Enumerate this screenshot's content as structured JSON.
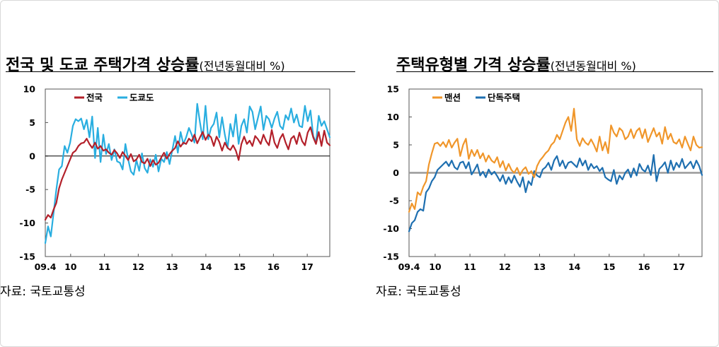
{
  "chart_data": [
    {
      "type": "line",
      "title": "전국 및 도쿄 주택가격 상승률",
      "title_unit": "(전년동월대비 %)",
      "source": "자료: 국토교통성",
      "ylim": [
        -15,
        10
      ],
      "yticks": [
        10,
        5,
        0,
        -5,
        -10,
        -15
      ],
      "xticks": [
        {
          "label": "09.4",
          "t": 0
        },
        {
          "label": "10",
          "t": 9
        },
        {
          "label": "11",
          "t": 21
        },
        {
          "label": "12",
          "t": 33
        },
        {
          "label": "13",
          "t": 45
        },
        {
          "label": "14",
          "t": 57
        },
        {
          "label": "15",
          "t": 69
        },
        {
          "label": "16",
          "t": 81
        },
        {
          "label": "17",
          "t": 93
        }
      ],
      "t_range": [
        0,
        101
      ],
      "zero_line_color": "#000000",
      "legend_position": "top-left",
      "series": [
        {
          "name": "전국",
          "color": "#b3202a",
          "values": [
            -9.5,
            -8.8,
            -9.2,
            -8.0,
            -7.0,
            -4.8,
            -3.5,
            -2.5,
            -1.5,
            -0.5,
            0.5,
            0.8,
            1.5,
            1.9,
            2.0,
            2.6,
            1.8,
            1.2,
            2.0,
            1.1,
            1.5,
            0.8,
            1.0,
            0.5,
            0.2,
            0.9,
            0.4,
            -0.3,
            0.6,
            0.0,
            -0.6,
            0.3,
            -0.8,
            -0.5,
            0.2,
            -0.9,
            -1.1,
            -0.4,
            -1.5,
            -0.6,
            -1.3,
            -1.0,
            -0.2,
            0.5,
            -0.4,
            0.3,
            0.8,
            1.2,
            2.2,
            1.4,
            2.0,
            1.8,
            2.6,
            2.2,
            3.2,
            1.9,
            2.8,
            3.6,
            2.4,
            3.2,
            2.8,
            1.5,
            2.9,
            2.1,
            0.8,
            2.0,
            1.2,
            0.9,
            1.6,
            0.8,
            -0.6,
            1.8,
            2.9,
            1.8,
            2.3,
            1.5,
            3.0,
            2.5,
            1.8,
            3.2,
            2.2,
            1.6,
            3.9,
            2.0,
            1.2,
            2.6,
            3.3,
            2.0,
            1.0,
            2.6,
            3.0,
            1.8,
            3.5,
            2.2,
            1.6,
            3.5,
            4.3,
            2.8,
            1.8,
            3.6,
            1.5,
            3.8,
            2.0,
            1.6
          ]
        },
        {
          "name": "도쿄도",
          "color": "#29aee0",
          "values": [
            -13.0,
            -10.5,
            -12.0,
            -8.5,
            -5.0,
            -2.0,
            -1.5,
            1.5,
            0.5,
            2.0,
            4.5,
            5.5,
            5.2,
            5.6,
            4.0,
            5.4,
            2.8,
            5.9,
            -0.3,
            4.2,
            -0.9,
            3.2,
            0.3,
            1.8,
            -0.6,
            1.0,
            -0.8,
            -1.0,
            -2.0,
            1.8,
            -0.5,
            -2.3,
            -2.8,
            -0.6,
            -2.2,
            0.4,
            -1.8,
            -2.5,
            -0.5,
            -1.6,
            0.2,
            -2.3,
            -0.4,
            -0.9,
            0.6,
            -1.2,
            0.9,
            3.0,
            0.5,
            3.6,
            1.8,
            2.8,
            4.2,
            3.2,
            2.0,
            7.8,
            5.0,
            2.5,
            7.5,
            2.5,
            4.2,
            4.8,
            6.5,
            2.8,
            5.8,
            3.2,
            1.2,
            4.8,
            2.9,
            6.2,
            1.8,
            4.5,
            5.5,
            3.5,
            7.4,
            6.6,
            4.0,
            5.7,
            7.4,
            3.9,
            6.0,
            5.5,
            4.2,
            5.6,
            6.6,
            4.5,
            4.0,
            6.1,
            5.4,
            7.1,
            5.0,
            6.2,
            4.5,
            4.3,
            7.5,
            5.2,
            6.8,
            3.0,
            2.0,
            6.0,
            4.5,
            5.2,
            4.0,
            2.8
          ]
        }
      ]
    },
    {
      "type": "line",
      "title": "주택유형별 가격 상승률",
      "title_unit": "(전년동월대비 %)",
      "source": "자료: 국토교통성",
      "ylim": [
        -15,
        15
      ],
      "yticks": [
        15,
        10,
        5,
        0,
        -5,
        -10,
        -15
      ],
      "xticks": [
        {
          "label": "09.4",
          "t": 0
        },
        {
          "label": "10",
          "t": 9
        },
        {
          "label": "11",
          "t": 21
        },
        {
          "label": "12",
          "t": 33
        },
        {
          "label": "13",
          "t": 45
        },
        {
          "label": "14",
          "t": 57
        },
        {
          "label": "15",
          "t": 69
        },
        {
          "label": "16",
          "t": 81
        },
        {
          "label": "17",
          "t": 93
        }
      ],
      "t_range": [
        0,
        101
      ],
      "zero_line_color": "#999999",
      "legend_position": "top-left",
      "series": [
        {
          "name": "맨션",
          "color": "#f0962a",
          "values": [
            -7.0,
            -5.5,
            -6.5,
            -3.5,
            -4.0,
            -2.5,
            -1.5,
            1.5,
            3.5,
            5.2,
            5.4,
            4.8,
            5.5,
            4.6,
            5.9,
            4.5,
            5.4,
            6.1,
            3.0,
            5.0,
            6.1,
            2.5,
            4.1,
            3.0,
            4.1,
            2.6,
            3.5,
            2.0,
            3.1,
            2.2,
            1.8,
            2.8,
            1.0,
            2.1,
            0.4,
            1.6,
            0.5,
            0.0,
            0.9,
            -0.4,
            0.5,
            1.0,
            -0.2,
            0.3,
            -0.8,
            1.2,
            2.2,
            2.8,
            3.5,
            4.0,
            5.0,
            5.5,
            6.8,
            6.0,
            7.5,
            9.0,
            10.0,
            7.5,
            11.5,
            6.0,
            4.8,
            6.2,
            5.4,
            5.0,
            6.0,
            5.0,
            3.8,
            6.5,
            4.0,
            5.5,
            3.5,
            8.5,
            7.2,
            6.5,
            8.0,
            7.5,
            6.0,
            6.5,
            7.8,
            6.2,
            7.5,
            8.0,
            6.2,
            7.8,
            5.5,
            6.8,
            8.0,
            6.5,
            7.2,
            5.2,
            8.2,
            6.0,
            7.0,
            5.5,
            5.2,
            6.0,
            4.5,
            6.5,
            5.2,
            4.0,
            6.5,
            5.0,
            4.5,
            4.6
          ]
        },
        {
          "name": "단독주택",
          "color": "#1e6fb0",
          "values": [
            -10.5,
            -9.0,
            -8.5,
            -7.0,
            -6.5,
            -6.8,
            -3.5,
            -2.8,
            -1.5,
            -0.8,
            0.5,
            1.0,
            1.5,
            2.0,
            1.2,
            2.2,
            1.0,
            0.6,
            1.8,
            2.0,
            0.8,
            1.9,
            -0.3,
            0.5,
            1.5,
            -0.5,
            0.2,
            -0.8,
            0.6,
            -0.3,
            0.2,
            -0.6,
            -1.5,
            -0.4,
            -2.0,
            -0.8,
            -1.8,
            -0.5,
            -1.6,
            -2.5,
            -0.8,
            -3.5,
            -1.5,
            -2.2,
            0.3,
            -0.5,
            -0.8,
            0.6,
            1.0,
            1.8,
            0.5,
            2.2,
            3.0,
            1.2,
            2.2,
            0.8,
            1.8,
            2.0,
            1.5,
            1.0,
            2.6,
            1.3,
            2.2,
            0.5,
            1.6,
            0.8,
            1.2,
            0.3,
            0.9,
            -0.8,
            -1.2,
            -1.5,
            0.5,
            -2.0,
            -0.5,
            -1.2,
            0.0,
            0.6,
            -0.8,
            0.8,
            -0.5,
            1.6,
            0.6,
            0.2,
            1.3,
            -0.4,
            3.2,
            -1.5,
            0.7,
            1.2,
            1.9,
            0.0,
            2.2,
            0.5,
            1.8,
            1.0,
            2.5,
            0.8,
            1.4,
            2.0,
            0.8,
            2.2,
            1.2,
            -0.4
          ]
        }
      ]
    }
  ]
}
